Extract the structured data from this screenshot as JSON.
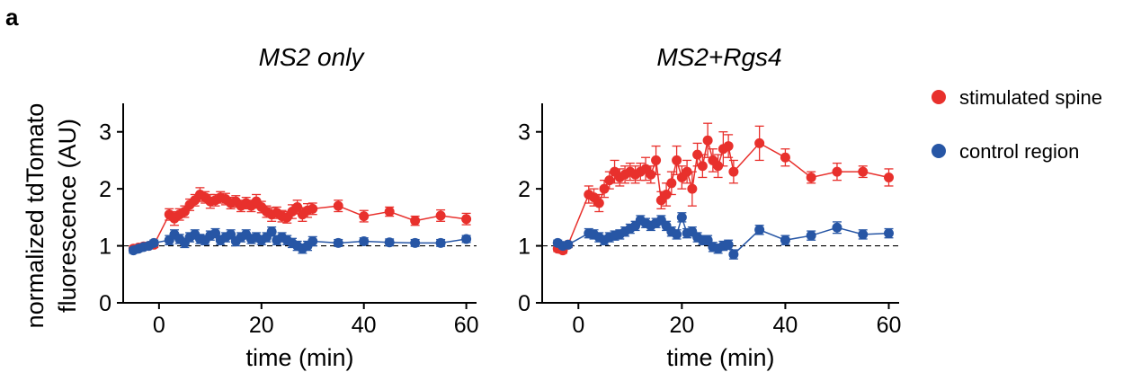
{
  "figure": {
    "panel_letter": "a"
  },
  "colors": {
    "stimulated": "#e8302c",
    "control": "#2756a5"
  },
  "shared_ylabel": [
    "normalized tdTomato",
    "fluorescence (AU)"
  ],
  "legend": [
    {
      "label": "stimulated spine",
      "color": "#e8302c"
    },
    {
      "label": "control region",
      "color": "#2756a5"
    }
  ],
  "chart_data": [
    {
      "type": "scatter",
      "title": "MS2 only",
      "xlabel": "time (min)",
      "ylabel": "normalized tdTomato fluorescence (AU)",
      "xlim": [
        -7,
        62
      ],
      "ylim": [
        0,
        3.5
      ],
      "xticks": [
        0,
        20,
        40,
        60
      ],
      "yticks": [
        0,
        1,
        2,
        3
      ],
      "reference_line": 1,
      "series": [
        {
          "name": "stimulated spine",
          "color": "#e8302c",
          "x": [
            -5,
            -4,
            -3,
            -2,
            -1,
            2,
            3,
            4,
            5,
            6,
            7,
            8,
            9,
            10,
            11,
            12,
            13,
            14,
            15,
            16,
            17,
            18,
            19,
            20,
            21,
            22,
            23,
            24,
            25,
            26,
            27,
            28,
            29,
            30,
            35,
            40,
            45,
            50,
            55,
            60
          ],
          "y": [
            0.95,
            0.97,
            0.99,
            1.0,
            1.02,
            1.55,
            1.48,
            1.55,
            1.6,
            1.72,
            1.8,
            1.9,
            1.85,
            1.78,
            1.8,
            1.85,
            1.82,
            1.75,
            1.78,
            1.7,
            1.75,
            1.7,
            1.78,
            1.68,
            1.6,
            1.55,
            1.58,
            1.52,
            1.5,
            1.6,
            1.68,
            1.55,
            1.62,
            1.65,
            1.7,
            1.52,
            1.6,
            1.44,
            1.53,
            1.47
          ],
          "err": [
            0.05,
            0.05,
            0.05,
            0.05,
            0.05,
            0.1,
            0.12,
            0.1,
            0.1,
            0.1,
            0.1,
            0.12,
            0.1,
            0.12,
            0.1,
            0.1,
            0.1,
            0.1,
            0.1,
            0.1,
            0.1,
            0.1,
            0.12,
            0.1,
            0.1,
            0.12,
            0.1,
            0.1,
            0.1,
            0.12,
            0.12,
            0.12,
            0.12,
            0.1,
            0.1,
            0.1,
            0.08,
            0.08,
            0.1,
            0.1
          ]
        },
        {
          "name": "control region",
          "color": "#2756a5",
          "x": [
            -5,
            -4,
            -3,
            -2,
            -1,
            2,
            3,
            4,
            5,
            6,
            7,
            8,
            9,
            10,
            11,
            12,
            13,
            14,
            15,
            16,
            17,
            18,
            19,
            20,
            21,
            22,
            23,
            24,
            25,
            26,
            27,
            28,
            29,
            30,
            35,
            40,
            45,
            50,
            55,
            60
          ],
          "y": [
            0.92,
            0.95,
            0.98,
            1.0,
            1.05,
            1.1,
            1.2,
            1.12,
            1.05,
            1.15,
            1.2,
            1.12,
            1.1,
            1.18,
            1.22,
            1.1,
            1.15,
            1.2,
            1.08,
            1.15,
            1.2,
            1.12,
            1.15,
            1.1,
            1.15,
            1.25,
            1.1,
            1.15,
            1.1,
            1.05,
            1.0,
            0.95,
            1.0,
            1.08,
            1.05,
            1.08,
            1.06,
            1.05,
            1.05,
            1.12
          ],
          "err": [
            0.05,
            0.05,
            0.05,
            0.05,
            0.05,
            0.08,
            0.08,
            0.08,
            0.08,
            0.08,
            0.08,
            0.08,
            0.08,
            0.08,
            0.08,
            0.08,
            0.08,
            0.08,
            0.08,
            0.08,
            0.08,
            0.08,
            0.08,
            0.08,
            0.08,
            0.08,
            0.08,
            0.08,
            0.08,
            0.08,
            0.08,
            0.08,
            0.08,
            0.08,
            0.06,
            0.06,
            0.06,
            0.06,
            0.06,
            0.06
          ]
        }
      ]
    },
    {
      "type": "scatter",
      "title": "MS2+Rgs4",
      "xlabel": "time (min)",
      "ylabel": "",
      "xlim": [
        -7,
        62
      ],
      "ylim": [
        0,
        3.5
      ],
      "xticks": [
        0,
        20,
        40,
        60
      ],
      "yticks": [
        0,
        1,
        2,
        3
      ],
      "reference_line": 1,
      "series": [
        {
          "name": "stimulated spine",
          "color": "#e8302c",
          "x": [
            -4,
            -3,
            -2,
            2,
            3,
            4,
            5,
            6,
            7,
            8,
            9,
            10,
            11,
            12,
            13,
            14,
            15,
            16,
            17,
            18,
            19,
            20,
            21,
            22,
            23,
            24,
            25,
            26,
            27,
            28,
            29,
            30,
            35,
            40,
            45,
            50,
            55,
            60
          ],
          "y": [
            0.95,
            0.92,
            1.02,
            1.9,
            1.85,
            1.75,
            2.0,
            2.15,
            2.3,
            2.2,
            2.25,
            2.3,
            2.25,
            2.3,
            2.35,
            2.25,
            2.5,
            1.8,
            1.9,
            2.1,
            2.5,
            2.2,
            2.3,
            2.0,
            2.6,
            2.4,
            2.85,
            2.5,
            2.4,
            2.7,
            2.75,
            2.3,
            2.8,
            2.55,
            2.2,
            2.3,
            2.3,
            2.2
          ],
          "err": [
            0.05,
            0.05,
            0.05,
            0.15,
            0.15,
            0.15,
            0.15,
            0.15,
            0.2,
            0.15,
            0.15,
            0.15,
            0.15,
            0.15,
            0.2,
            0.15,
            0.25,
            0.15,
            0.2,
            0.2,
            0.25,
            0.2,
            0.2,
            0.3,
            0.2,
            0.2,
            0.3,
            0.2,
            0.2,
            0.3,
            0.2,
            0.2,
            0.3,
            0.15,
            0.1,
            0.15,
            0.1,
            0.15
          ]
        },
        {
          "name": "control region",
          "color": "#2756a5",
          "x": [
            -4,
            -3,
            -2,
            2,
            3,
            4,
            5,
            6,
            7,
            8,
            9,
            10,
            11,
            12,
            13,
            14,
            15,
            16,
            17,
            18,
            19,
            20,
            21,
            22,
            23,
            24,
            25,
            26,
            27,
            28,
            29,
            30,
            35,
            40,
            45,
            50,
            55,
            60
          ],
          "y": [
            1.05,
            1.0,
            1.02,
            1.22,
            1.2,
            1.15,
            1.1,
            1.15,
            1.18,
            1.2,
            1.25,
            1.3,
            1.35,
            1.45,
            1.4,
            1.35,
            1.4,
            1.45,
            1.35,
            1.25,
            1.2,
            1.5,
            1.22,
            1.25,
            1.15,
            1.1,
            1.1,
            0.98,
            0.95,
            1.0,
            1.02,
            0.85,
            1.28,
            1.1,
            1.18,
            1.32,
            1.2,
            1.22
          ],
          "err": [
            0.05,
            0.05,
            0.05,
            0.08,
            0.08,
            0.08,
            0.08,
            0.08,
            0.08,
            0.08,
            0.08,
            0.08,
            0.08,
            0.08,
            0.08,
            0.08,
            0.08,
            0.08,
            0.08,
            0.08,
            0.08,
            0.08,
            0.08,
            0.08,
            0.08,
            0.08,
            0.08,
            0.08,
            0.08,
            0.08,
            0.08,
            0.08,
            0.08,
            0.08,
            0.08,
            0.1,
            0.08,
            0.08
          ]
        }
      ]
    }
  ]
}
